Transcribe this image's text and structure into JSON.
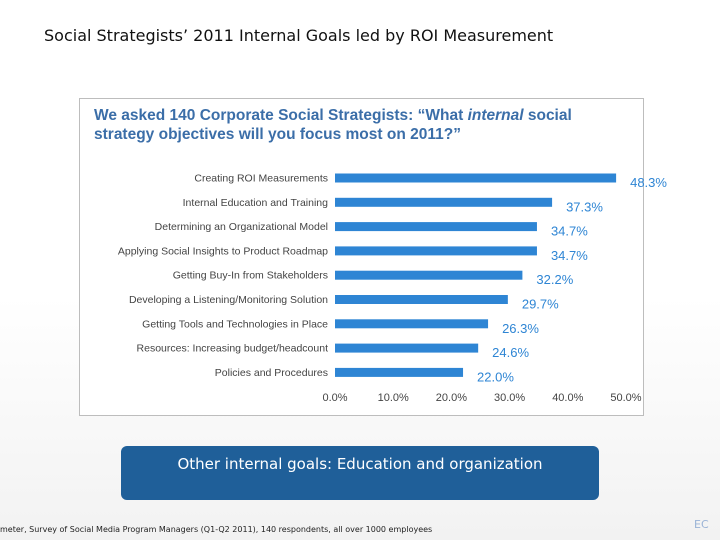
{
  "slide": {
    "title": "Social Strategists’ 2011 Internal Goals led by ROI Measurement",
    "callout": "Other internal goals: Education and organization",
    "footnote": "meter, Survey of Social Media Program Managers (Q1-Q2 2011), 140 respondents, all over 1000 employees",
    "corner_mark": "EC"
  },
  "chart_heading": {
    "part1": "We asked 140 Corporate Social Strategists: “What ",
    "emphasis": "internal",
    "part2": " social strategy objectives will you focus most on 2011?”"
  },
  "colors": {
    "bar": "#2e85d4",
    "heading": "#3b6ea8",
    "callout": "#1f5f99"
  },
  "chart_data": {
    "type": "bar",
    "orientation": "horizontal",
    "categories": [
      "Creating ROI Measurements",
      "Internal Education and Training",
      "Determining an Organizational Model",
      "Applying Social Insights to Product Roadmap",
      "Getting Buy-In from Stakeholders",
      "Developing a Listening/Monitoring Solution",
      "Getting Tools and Technologies in Place",
      "Resources: Increasing budget/headcount",
      "Policies and Procedures"
    ],
    "values": [
      48.3,
      37.3,
      34.7,
      34.7,
      32.2,
      29.7,
      26.3,
      24.6,
      22.0
    ],
    "value_labels": [
      "48.3%",
      "37.3%",
      "34.7%",
      "34.7%",
      "32.2%",
      "29.7%",
      "26.3%",
      "24.6%",
      "22.0%"
    ],
    "xlim": [
      0,
      50
    ],
    "xticks": [
      0,
      10,
      20,
      30,
      40,
      50
    ],
    "xtick_labels": [
      "0.0%",
      "10.0%",
      "20.0%",
      "30.0%",
      "40.0%",
      "50.0%"
    ],
    "grid": false,
    "legend": "none"
  }
}
